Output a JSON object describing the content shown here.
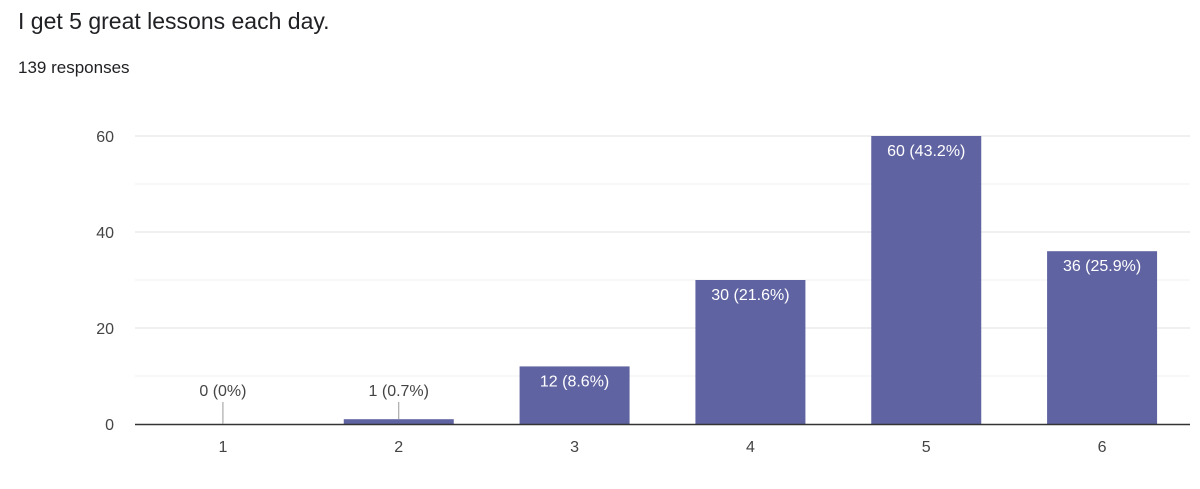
{
  "question": {
    "title": "I get 5 great lessons each day.",
    "responses": "139 responses"
  },
  "chart_data": {
    "type": "bar",
    "categories": [
      "1",
      "2",
      "3",
      "4",
      "5",
      "6"
    ],
    "values": [
      0,
      1,
      12,
      30,
      60,
      36
    ],
    "data_labels": [
      "0 (0%)",
      "1 (0.7%)",
      "12 (8.6%)",
      "30 (21.6%)",
      "60 (43.2%)",
      "36 (25.9%)"
    ],
    "yticks": [
      0,
      20,
      40,
      60
    ],
    "ylim": [
      0,
      60
    ],
    "grid": true,
    "legend": "none",
    "bar_color": "#6063a1"
  }
}
